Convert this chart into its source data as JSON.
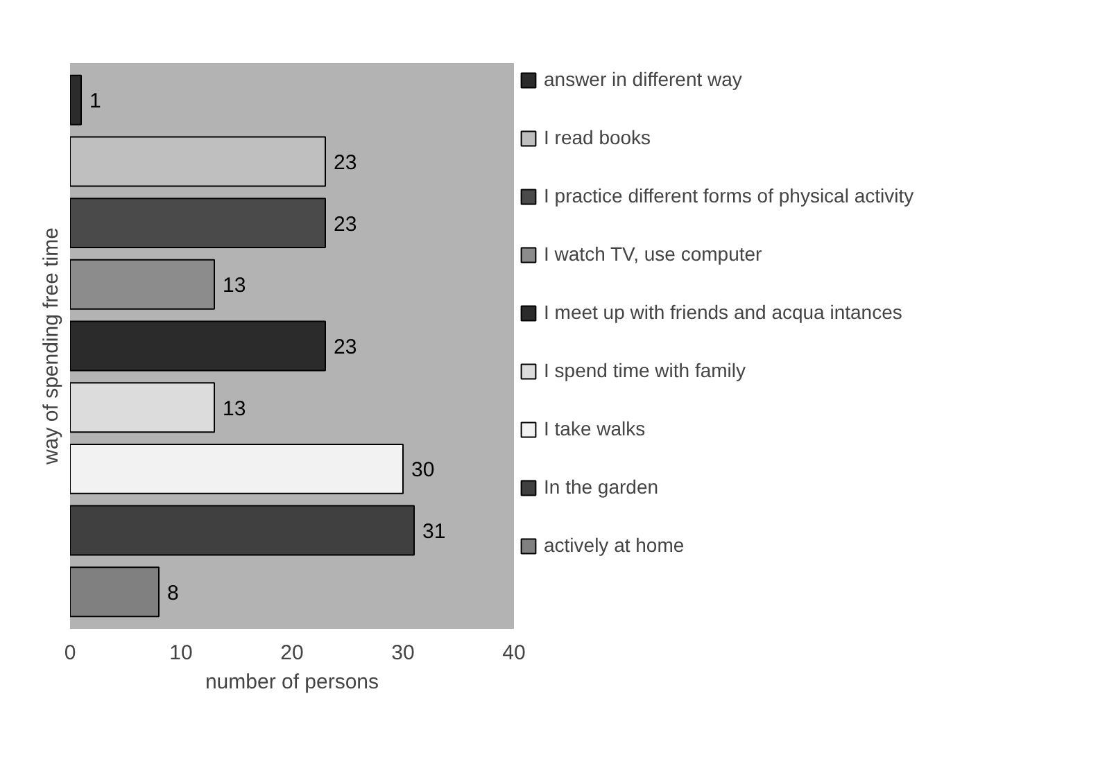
{
  "chart_data": {
    "type": "bar",
    "orientation": "horizontal",
    "stacked": true,
    "xlabel": "number of persons",
    "ylabel": "way of spending free time",
    "categories": [
      null,
      null,
      null,
      null,
      null,
      null,
      null,
      null,
      null
    ],
    "series": [
      {
        "name": "answer in different way",
        "color": "#2b2b2b",
        "values": [
          1,
          null,
          null,
          null,
          null,
          null,
          null,
          null,
          null
        ]
      },
      {
        "name": "I read books",
        "color": "#bfbfbf",
        "values": [
          null,
          23,
          null,
          null,
          null,
          null,
          null,
          null,
          null
        ]
      },
      {
        "name": "I practice different forms of physical activity",
        "color": "#4a4a4a",
        "values": [
          null,
          null,
          23,
          null,
          null,
          null,
          null,
          null,
          null
        ]
      },
      {
        "name": "I watch TV, use computer",
        "color": "#8c8c8c",
        "values": [
          null,
          null,
          null,
          13,
          null,
          null,
          null,
          null,
          null
        ]
      },
      {
        "name": "I meet up with friends and acqua intances",
        "color": "#2b2b2b",
        "values": [
          null,
          null,
          null,
          null,
          23,
          null,
          null,
          null,
          null
        ]
      },
      {
        "name": "I spend time with family",
        "color": "#dcdcdc",
        "values": [
          null,
          null,
          null,
          null,
          null,
          13,
          null,
          null,
          null
        ]
      },
      {
        "name": "I take walks",
        "color": "#f2f2f2",
        "values": [
          null,
          null,
          null,
          null,
          null,
          null,
          30,
          null,
          null
        ]
      },
      {
        "name": "In the garden",
        "color": "#404040",
        "values": [
          null,
          null,
          null,
          null,
          null,
          null,
          null,
          31,
          null
        ]
      },
      {
        "name": "actively at home",
        "color": "#808080",
        "values": [
          null,
          null,
          null,
          null,
          null,
          null,
          null,
          null,
          8
        ]
      }
    ],
    "xlim": [
      0,
      40
    ],
    "xticks": [
      0,
      10,
      20,
      30,
      40
    ],
    "tick_labels": "x",
    "grid": false,
    "legend": "right",
    "data_labels": true
  }
}
